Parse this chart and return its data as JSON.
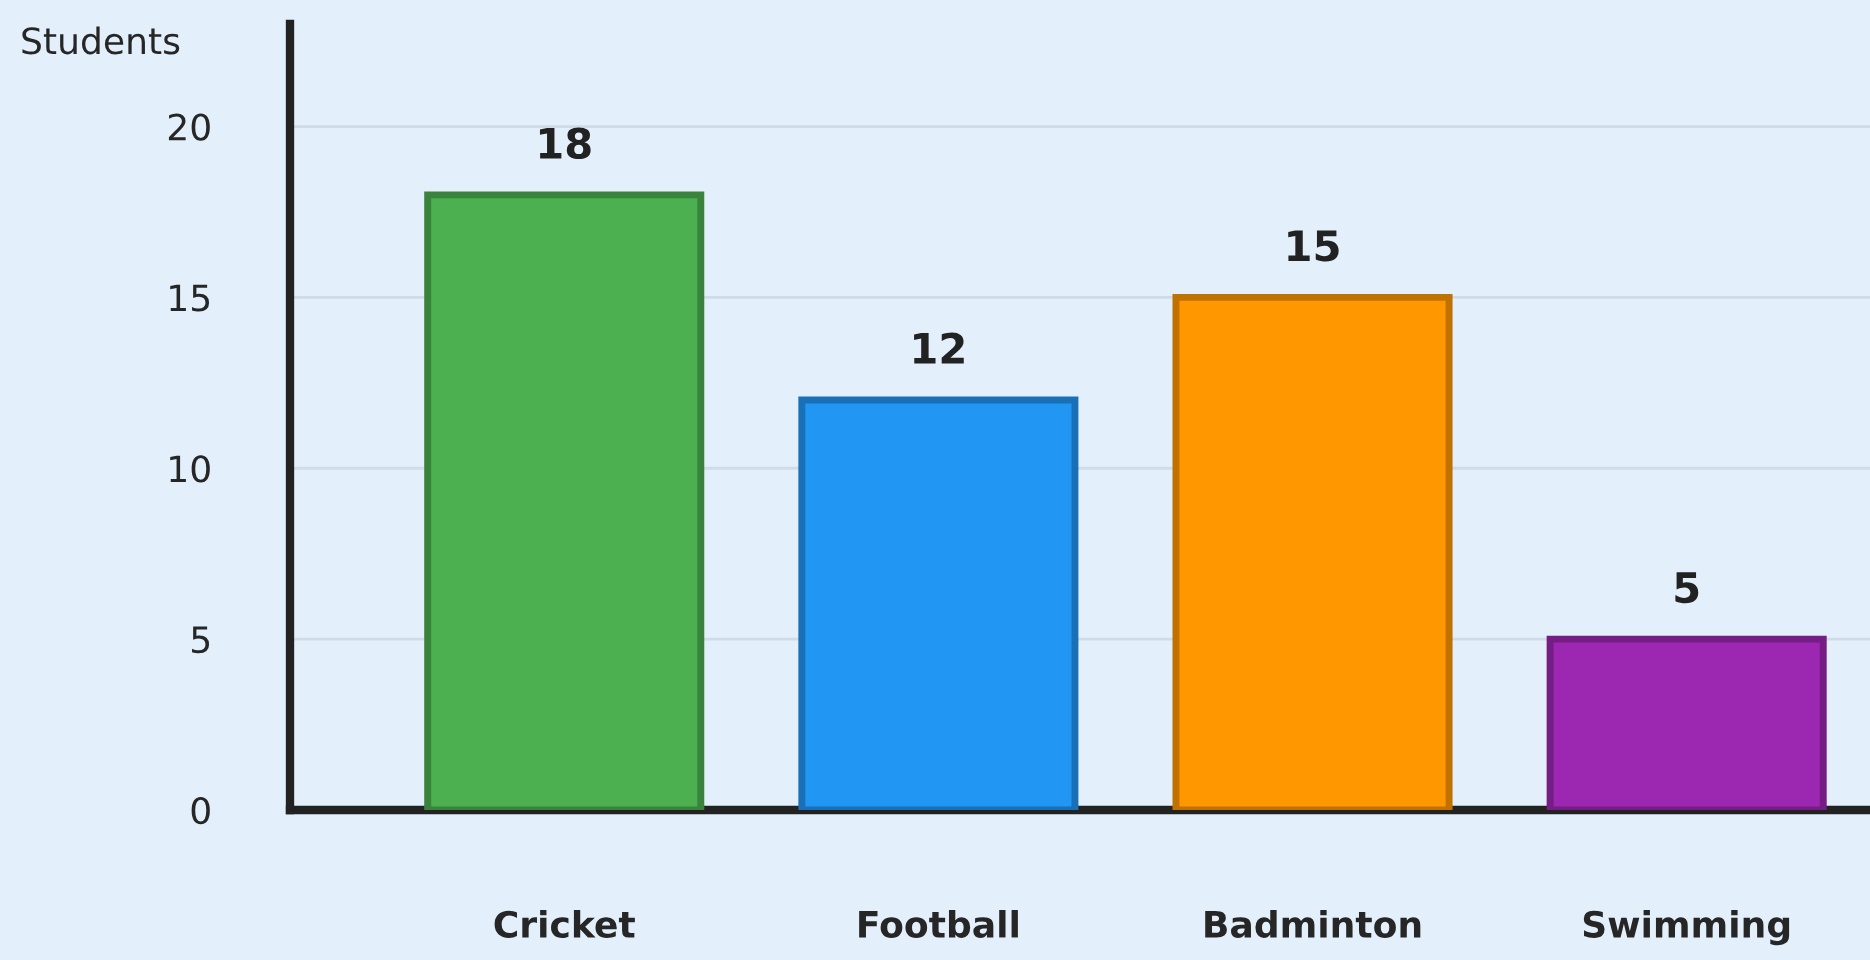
{
  "chart_data": {
    "type": "bar",
    "ylabel": "Students",
    "categories": [
      "Cricket",
      "Football",
      "Badminton",
      "Swimming"
    ],
    "values": [
      18,
      12,
      15,
      5
    ],
    "colors": [
      "#4caf50",
      "#2196f3",
      "#ff9800",
      "#9c27b0"
    ],
    "ylim": [
      0,
      23
    ],
    "yticks": [
      0,
      5,
      10,
      15,
      20
    ],
    "grid": "y",
    "data_labels": true
  }
}
